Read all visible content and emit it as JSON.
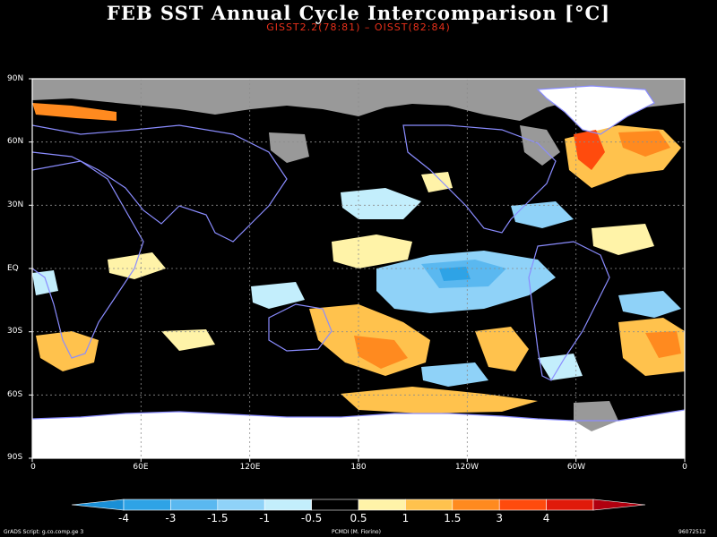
{
  "title": "FEB SST Annual Cycle Intercomparison [°C]",
  "subtitle": "GISST2.2(78:81) – OISST(82:84)",
  "y_labels": [
    "90N",
    "60N",
    "30N",
    "EQ",
    "30S",
    "60S",
    "90S"
  ],
  "x_labels": [
    "0",
    "60E",
    "120E",
    "180",
    "120W",
    "60W",
    "0"
  ],
  "colorbar": {
    "labels": [
      "-4",
      "-3",
      "-1.5",
      "-1",
      "-0.5",
      "0.5",
      "1",
      "1.5",
      "3",
      "4"
    ],
    "colors": [
      "#1a8fd6",
      "#2ea3e6",
      "#5ab8f0",
      "#8fd2f8",
      "#c3eefc",
      "#000000",
      "#fff3a8",
      "#ffc24d",
      "#ff8a1f",
      "#ff4b0d",
      "#e01a0a",
      "#b0000f"
    ]
  },
  "footer": {
    "left": "GrADS Script: g.co.comp.ge 3",
    "center": "PCMDI (M. Fiorino)",
    "right": "96072512"
  },
  "colors": {
    "ocean": "#000000",
    "land_outline": "#8a8cff",
    "ice": "#ffffff",
    "seaice": "#999999",
    "grid": "#8c8c8c",
    "title": "#ffffff",
    "subtitle": "#e8301a"
  }
}
